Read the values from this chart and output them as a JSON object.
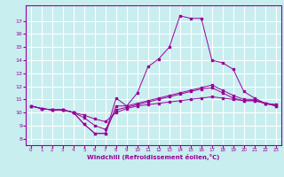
{
  "xlabel": "Windchill (Refroidissement éolien,°C)",
  "background_color": "#c8eef0",
  "grid_color": "#ffffff",
  "line_color": "#990099",
  "x_hours": [
    0,
    1,
    2,
    3,
    4,
    5,
    6,
    7,
    8,
    9,
    10,
    11,
    12,
    13,
    14,
    15,
    16,
    17,
    18,
    19,
    20,
    21,
    22,
    23
  ],
  "line1": [
    10.5,
    10.3,
    10.2,
    10.2,
    10.0,
    9.1,
    8.4,
    8.4,
    11.1,
    10.5,
    11.5,
    13.5,
    14.1,
    15.0,
    17.4,
    17.2,
    17.2,
    14.0,
    13.8,
    13.3,
    11.6,
    11.1,
    10.7,
    10.6
  ],
  "line2": [
    10.5,
    10.3,
    10.2,
    10.2,
    10.0,
    9.6,
    9.0,
    8.7,
    10.2,
    10.4,
    10.6,
    10.8,
    11.0,
    11.2,
    11.4,
    11.6,
    11.8,
    11.9,
    11.5,
    11.1,
    10.9,
    10.9,
    10.7,
    10.5
  ],
  "line3": [
    10.5,
    10.3,
    10.2,
    10.2,
    10.0,
    9.8,
    9.5,
    9.3,
    10.0,
    10.3,
    10.5,
    10.6,
    10.7,
    10.8,
    10.9,
    11.0,
    11.1,
    11.2,
    11.1,
    11.0,
    10.9,
    10.9,
    10.7,
    10.6
  ],
  "line4": [
    10.5,
    10.3,
    10.2,
    10.2,
    10.0,
    9.1,
    8.4,
    8.4,
    10.5,
    10.5,
    10.7,
    10.9,
    11.1,
    11.3,
    11.5,
    11.7,
    11.9,
    12.1,
    11.7,
    11.3,
    11.0,
    11.0,
    10.7,
    10.5
  ],
  "ylim": [
    7.5,
    18.2
  ],
  "xlim": [
    -0.5,
    23.5
  ],
  "yticks": [
    8,
    9,
    10,
    11,
    12,
    13,
    14,
    15,
    16,
    17
  ],
  "xticks": [
    0,
    1,
    2,
    3,
    4,
    5,
    6,
    7,
    8,
    9,
    10,
    11,
    12,
    13,
    14,
    15,
    16,
    17,
    18,
    19,
    20,
    21,
    22,
    23
  ]
}
